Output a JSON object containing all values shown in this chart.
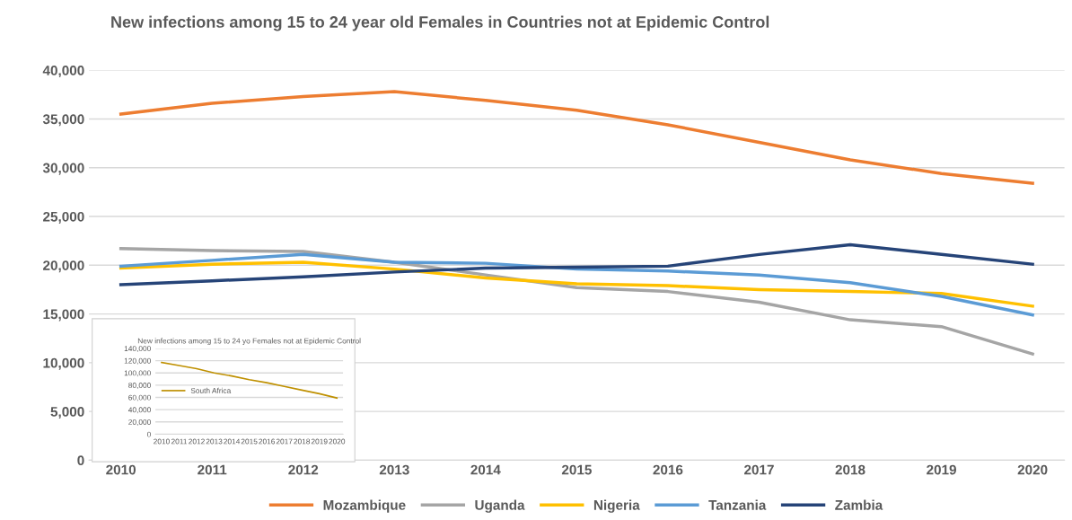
{
  "chart_data": [
    {
      "type": "line",
      "title": "New infections among 15 to 24 year old Females in Countries not at Epidemic Control",
      "categories": [
        "2010",
        "2011",
        "2012",
        "2013",
        "2014",
        "2015",
        "2016",
        "2017",
        "2018",
        "2019",
        "2020"
      ],
      "series": [
        {
          "name": "Mozambique",
          "color": "#ed7d31",
          "values": [
            35500,
            36600,
            37300,
            37800,
            36900,
            35900,
            34400,
            32600,
            30800,
            29400,
            28400
          ]
        },
        {
          "name": "Uganda",
          "color": "#a5a5a5",
          "values": [
            21700,
            21500,
            21400,
            20300,
            19000,
            17700,
            17300,
            16200,
            14400,
            13700,
            10900
          ]
        },
        {
          "name": "Nigeria",
          "color": "#ffc000",
          "values": [
            19700,
            20100,
            20300,
            19600,
            18700,
            18100,
            17900,
            17500,
            17300,
            17100,
            15800
          ]
        },
        {
          "name": "Tanzania",
          "color": "#5b9bd5",
          "values": [
            19900,
            20500,
            21100,
            20300,
            20200,
            19600,
            19400,
            19000,
            18200,
            16800,
            14900
          ]
        },
        {
          "name": "Zambia",
          "color": "#264478",
          "values": [
            18000,
            18400,
            18800,
            19300,
            19700,
            19800,
            19900,
            21100,
            22100,
            21100,
            20100
          ]
        }
      ],
      "ylim": [
        0,
        40000
      ],
      "yticks": [
        {
          "value": 0,
          "label": "0"
        },
        {
          "value": 5000,
          "label": "5,000"
        },
        {
          "value": 10000,
          "label": "10,000"
        },
        {
          "value": 15000,
          "label": "15,000"
        },
        {
          "value": 20000,
          "label": "20,000"
        },
        {
          "value": 25000,
          "label": "25,000"
        },
        {
          "value": 30000,
          "label": "30,000"
        },
        {
          "value": 35000,
          "label": "35,000"
        },
        {
          "value": 40000,
          "label": "40,000"
        }
      ],
      "grid": "y",
      "legend": "bottom",
      "marker": "none",
      "line_style": "solid"
    },
    {
      "type": "line",
      "title": "New infections among 15 to 24 yo Females not at Epidemic Control",
      "categories": [
        "2010",
        "2011",
        "2012",
        "2013",
        "2014",
        "2015",
        "2016",
        "2017",
        "2018",
        "2019",
        "2020"
      ],
      "series": [
        {
          "name": "South Africa",
          "color": "#bf9000",
          "values": [
            117000,
            112000,
            107000,
            100000,
            95000,
            89000,
            84000,
            78000,
            72000,
            66000,
            59000
          ]
        }
      ],
      "ylim": [
        0,
        140000
      ],
      "yticks": [
        {
          "value": 0,
          "label": "0"
        },
        {
          "value": 20000,
          "label": "20,000"
        },
        {
          "value": 40000,
          "label": "40,000"
        },
        {
          "value": 60000,
          "label": "60,000"
        },
        {
          "value": 80000,
          "label": "80,000"
        },
        {
          "value": 100000,
          "label": "100,000"
        },
        {
          "value": 120000,
          "label": "120,000"
        },
        {
          "value": 140000,
          "label": "140,000"
        }
      ],
      "grid": "y",
      "legend": "left",
      "marker": "none",
      "line_style": "solid"
    }
  ]
}
